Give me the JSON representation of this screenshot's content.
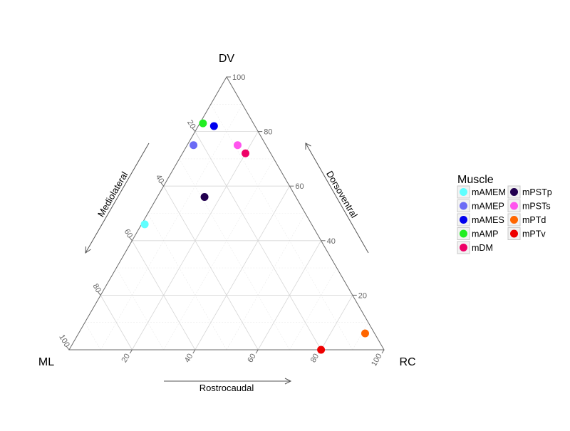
{
  "chart_data": {
    "type": "scatter",
    "subtype": "ternary",
    "axes": {
      "top": {
        "label": "DV"
      },
      "left": {
        "label": "ML"
      },
      "right": {
        "label": "RC"
      },
      "edge_labels": {
        "left": "Mediolateral",
        "right": "Dorsoventral",
        "bottom": "Rostrocaudal"
      },
      "range": [
        0,
        100
      ],
      "ticks": [
        20,
        40,
        60,
        80,
        100
      ]
    },
    "grid": true,
    "legend": {
      "title": "Muscle",
      "placement": "right"
    },
    "series": [
      {
        "name": "mAMEM",
        "color": "#5FFFFF",
        "dv": 46,
        "rc": 1,
        "ml": 53
      },
      {
        "name": "mAMEP",
        "color": "#6B6BF5",
        "dv": 75,
        "rc": 2,
        "ml": 23
      },
      {
        "name": "mAMES",
        "color": "#0000EE",
        "dv": 82,
        "rc": 5,
        "ml": 13
      },
      {
        "name": "mAMP",
        "color": "#22EE22",
        "dv": 83,
        "rc": 1,
        "ml": 16
      },
      {
        "name": "mDM",
        "color": "#EE0066",
        "dv": 72,
        "rc": 20,
        "ml": 8
      },
      {
        "name": "mPSTp",
        "color": "#22004F",
        "dv": 56,
        "rc": 15,
        "ml": 29
      },
      {
        "name": "mPSTs",
        "color": "#FF55EE",
        "dv": 75,
        "rc": 16,
        "ml": 9
      },
      {
        "name": "mPTd",
        "color": "#FF6600",
        "dv": 6,
        "rc": 91,
        "ml": 3
      },
      {
        "name": "mPTv",
        "color": "#EE0000",
        "dv": 0,
        "rc": 80,
        "ml": 20
      }
    ]
  }
}
